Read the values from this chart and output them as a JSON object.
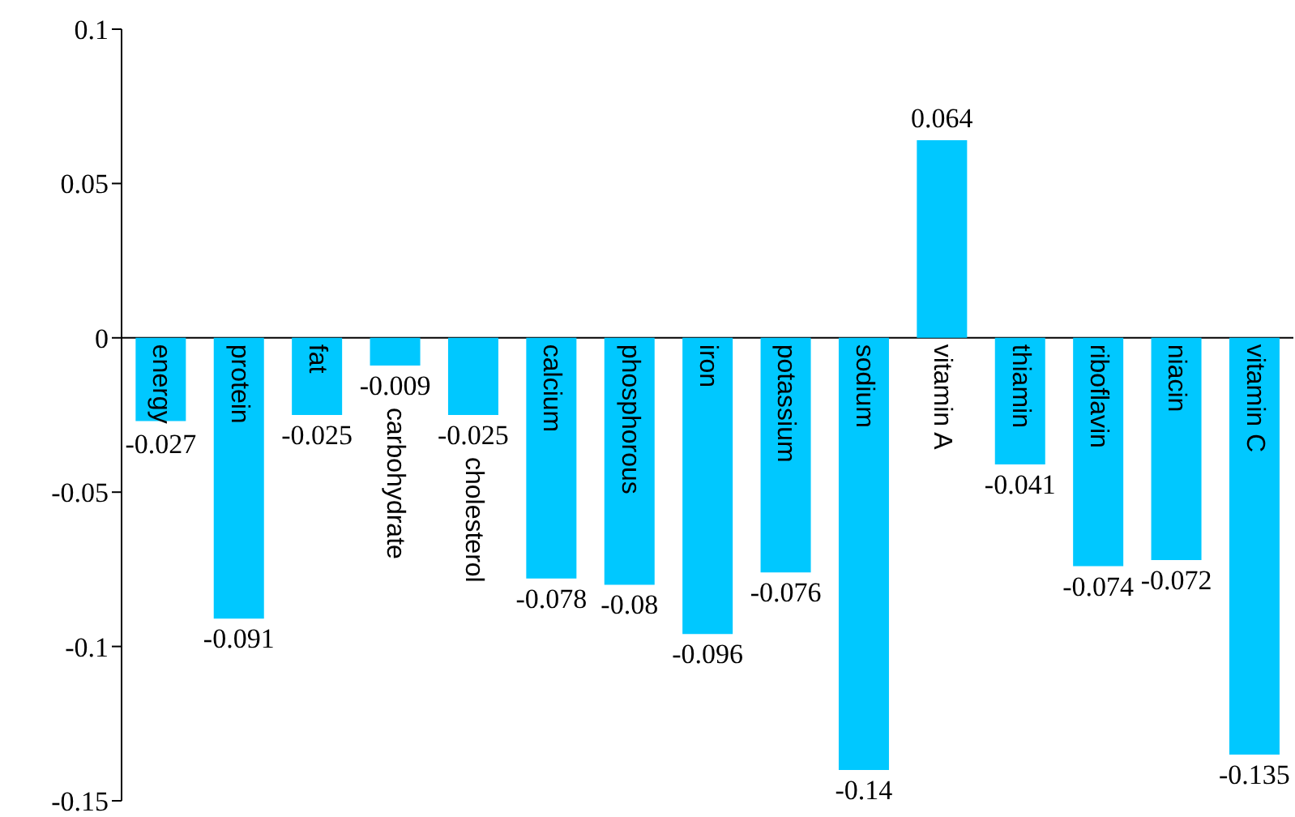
{
  "chart_data": {
    "type": "bar",
    "categories": [
      "energy",
      "protein",
      "fat",
      "carbohydrate",
      "cholesterol",
      "calcium",
      "phosphorous",
      "iron",
      "potassium",
      "sodium",
      "vitamin A",
      "thiamin",
      "riboflavin",
      "niacin",
      "vitamin C"
    ],
    "values": [
      -0.027,
      -0.091,
      -0.025,
      -0.009,
      -0.025,
      -0.078,
      -0.08,
      -0.096,
      -0.076,
      -0.14,
      0.064,
      -0.041,
      -0.074,
      -0.072,
      -0.135
    ],
    "color": "#00c8ff",
    "ylim": [
      -0.15,
      0.1
    ],
    "yticks": [
      -0.15,
      -0.1,
      -0.05,
      0,
      0.05,
      0.1
    ],
    "data_labels": true,
    "grid": false,
    "legend": false
  }
}
